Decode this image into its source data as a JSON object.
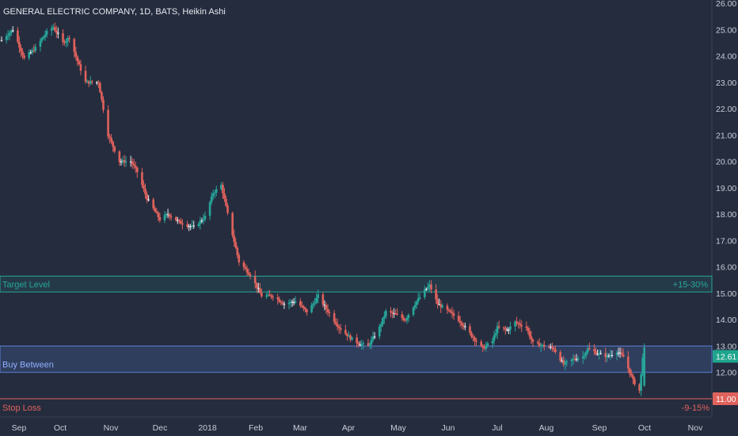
{
  "header": {
    "title": "GENERAL ELECTRIC COMPANY, 1D, BATS, Heikin Ashi"
  },
  "colors": {
    "background": "#252c3e",
    "up": "#26a69a",
    "down": "#e0625c",
    "doji": "#e8eaf0",
    "target": "#26a69a",
    "buy": "#5b7fd1",
    "stop": "#e0625c",
    "text": "#c8ccd6"
  },
  "zones": {
    "target": {
      "label": "Target Level",
      "pct": "+15-30%",
      "low": 15.05,
      "high": 15.65
    },
    "buy": {
      "label": "Buy Between",
      "low": 12.0,
      "high": 13.0
    },
    "stop": {
      "label": "Stop Loss",
      "pct": "-9-15%",
      "level": 11.0
    }
  },
  "price_labels": {
    "last": "12.61",
    "stop": "11.00"
  },
  "chart_data": {
    "type": "candlestick",
    "title": "GENERAL ELECTRIC COMPANY, 1D, BATS, Heikin Ashi",
    "y_ticks": [
      "26.00",
      "25.00",
      "24.00",
      "23.00",
      "22.00",
      "21.00",
      "20.00",
      "19.00",
      "18.00",
      "17.00",
      "16.00",
      "15.00",
      "14.00",
      "13.00",
      "12.00",
      "11.00"
    ],
    "ylim": [
      10.6,
      26.1
    ],
    "x_labels": [
      "Sep",
      "Oct",
      "Nov",
      "Dec",
      "2018",
      "Feb",
      "Mar",
      "Apr",
      "May",
      "Jun",
      "Jul",
      "Aug",
      "Sep",
      "Oct",
      "Nov"
    ],
    "x_range": [
      "2017-09-01",
      "2018-11-06"
    ],
    "price_keyframes": [
      [
        "2017-09-01",
        24.6
      ],
      [
        "2017-09-08",
        25.0
      ],
      [
        "2017-09-15",
        23.9
      ],
      [
        "2017-09-22",
        24.3
      ],
      [
        "2017-09-29",
        24.9
      ],
      [
        "2017-10-03",
        25.1
      ],
      [
        "2017-10-09",
        24.5
      ],
      [
        "2017-10-13",
        24.7
      ],
      [
        "2017-10-18",
        23.8
      ],
      [
        "2017-10-23",
        23.0
      ],
      [
        "2017-10-31",
        23.0
      ],
      [
        "2017-11-06",
        21.0
      ],
      [
        "2017-11-13",
        20.0
      ],
      [
        "2017-11-20",
        20.0
      ],
      [
        "2017-11-24",
        19.6
      ],
      [
        "2017-11-30",
        18.6
      ],
      [
        "2017-12-08",
        17.8
      ],
      [
        "2017-12-13",
        18.0
      ],
      [
        "2017-12-20",
        17.7
      ],
      [
        "2017-12-29",
        17.5
      ],
      [
        "2018-01-05",
        17.9
      ],
      [
        "2018-01-10",
        18.8
      ],
      [
        "2018-01-15",
        19.1
      ],
      [
        "2018-01-19",
        18.0
      ],
      [
        "2018-01-26",
        16.2
      ],
      [
        "2018-02-02",
        15.7
      ],
      [
        "2018-02-09",
        14.9
      ],
      [
        "2018-02-16",
        14.9
      ],
      [
        "2018-02-23",
        14.6
      ],
      [
        "2018-03-02",
        14.7
      ],
      [
        "2018-03-09",
        14.3
      ],
      [
        "2018-03-13",
        14.6
      ],
      [
        "2018-03-16",
        14.9
      ],
      [
        "2018-03-20",
        14.5
      ],
      [
        "2018-03-29",
        13.7
      ],
      [
        "2018-04-05",
        13.3
      ],
      [
        "2018-04-10",
        13.1
      ],
      [
        "2018-04-16",
        13.0
      ],
      [
        "2018-04-19",
        13.3
      ],
      [
        "2018-04-23",
        13.7
      ],
      [
        "2018-04-27",
        14.3
      ],
      [
        "2018-05-03",
        14.2
      ],
      [
        "2018-05-09",
        14.0
      ],
      [
        "2018-05-15",
        14.6
      ],
      [
        "2018-05-21",
        15.1
      ],
      [
        "2018-05-24",
        15.3
      ],
      [
        "2018-05-29",
        14.6
      ],
      [
        "2018-06-05",
        14.3
      ],
      [
        "2018-06-11",
        14.0
      ],
      [
        "2018-06-19",
        13.4
      ],
      [
        "2018-06-26",
        12.9
      ],
      [
        "2018-07-02",
        13.2
      ],
      [
        "2018-07-05",
        13.7
      ],
      [
        "2018-07-11",
        13.6
      ],
      [
        "2018-07-16",
        13.9
      ],
      [
        "2018-07-23",
        13.7
      ],
      [
        "2018-07-27",
        13.1
      ],
      [
        "2018-08-03",
        13.0
      ],
      [
        "2018-08-09",
        12.9
      ],
      [
        "2018-08-15",
        12.3
      ],
      [
        "2018-08-21",
        12.5
      ],
      [
        "2018-08-27",
        12.6
      ],
      [
        "2018-08-30",
        12.9
      ],
      [
        "2018-09-06",
        12.7
      ],
      [
        "2018-09-11",
        12.6
      ],
      [
        "2018-09-17",
        12.8
      ],
      [
        "2018-09-21",
        12.6
      ],
      [
        "2018-09-27",
        11.7
      ],
      [
        "2018-10-01",
        11.3
      ],
      [
        "2018-10-02",
        11.9
      ],
      [
        "2018-10-03",
        12.61
      ]
    ]
  }
}
